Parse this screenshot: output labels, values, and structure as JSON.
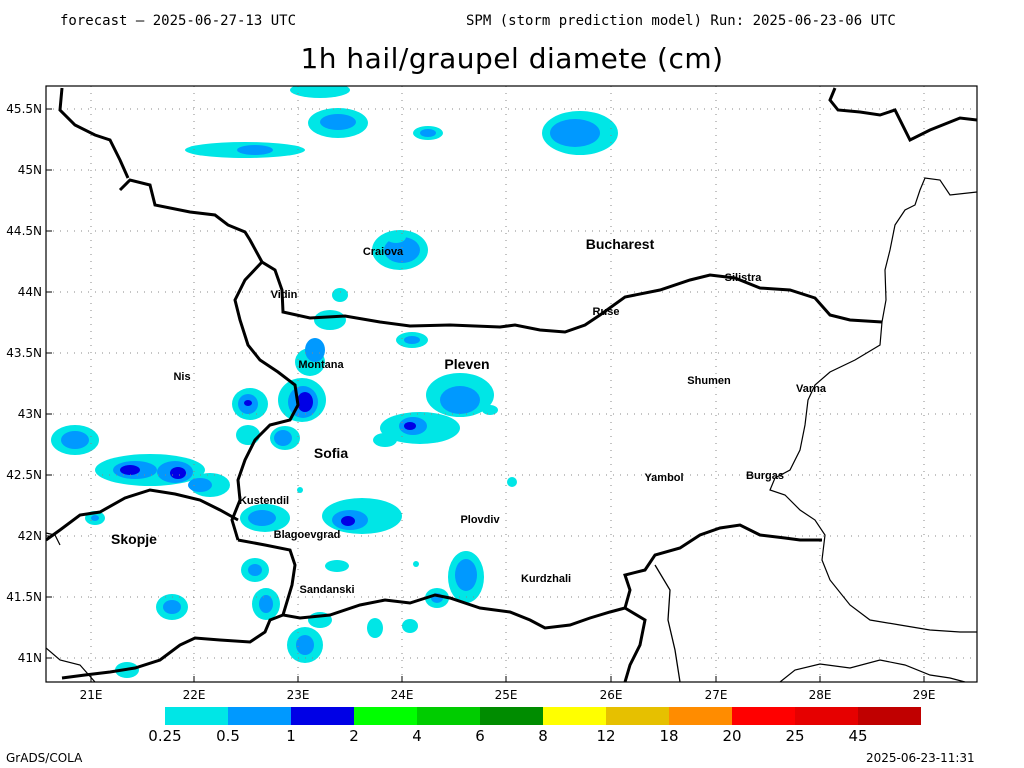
{
  "header": {
    "forecast": "forecast – 2025-06-27-13 UTC",
    "run": "SPM (storm prediction model) Run: 2025-06-23-06 UTC"
  },
  "title": "1h hail/graupel diamete (cm)",
  "lat_labels": [
    "45.5N",
    "45N",
    "44.5N",
    "44N",
    "43.5N",
    "43N",
    "42.5N",
    "42N",
    "41.5N",
    "41N"
  ],
  "lon_labels": [
    "21E",
    "22E",
    "23E",
    "24E",
    "25E",
    "26E",
    "27E",
    "28E",
    "29E"
  ],
  "cities": [
    {
      "name": "Bucharest",
      "big": true
    },
    {
      "name": "Craiova",
      "big": false
    },
    {
      "name": "Vidin",
      "big": false
    },
    {
      "name": "Ruse",
      "big": false
    },
    {
      "name": "Silistra",
      "big": false
    },
    {
      "name": "Montana",
      "big": false
    },
    {
      "name": "Pleven",
      "big": true
    },
    {
      "name": "Nis",
      "big": false
    },
    {
      "name": "Shumen",
      "big": false
    },
    {
      "name": "Varna",
      "big": false
    },
    {
      "name": "Sofia",
      "big": true
    },
    {
      "name": "Yambol",
      "big": false
    },
    {
      "name": "Burgas",
      "big": false
    },
    {
      "name": "Kustendil",
      "big": false
    },
    {
      "name": "Plovdiv",
      "big": false
    },
    {
      "name": "Blagoevgrad",
      "big": false
    },
    {
      "name": "Skopje",
      "big": true
    },
    {
      "name": "Kurdzhali",
      "big": false
    },
    {
      "name": "Sandanski",
      "big": false
    }
  ],
  "legend": {
    "colors": [
      "#00e6e6",
      "#0099ff",
      "#0000e6",
      "#00ff00",
      "#00cc00",
      "#008c00",
      "#ffff00",
      "#e6c000",
      "#ff8c00",
      "#ff0000",
      "#e60000",
      "#c00000"
    ],
    "ticks": [
      "0.25",
      "0.5",
      "1",
      "2",
      "4",
      "6",
      "8",
      "12",
      "18",
      "20",
      "25",
      "45"
    ]
  },
  "footer": {
    "left": "GrADS/COLA",
    "right": "2025-06-23-11:31"
  }
}
